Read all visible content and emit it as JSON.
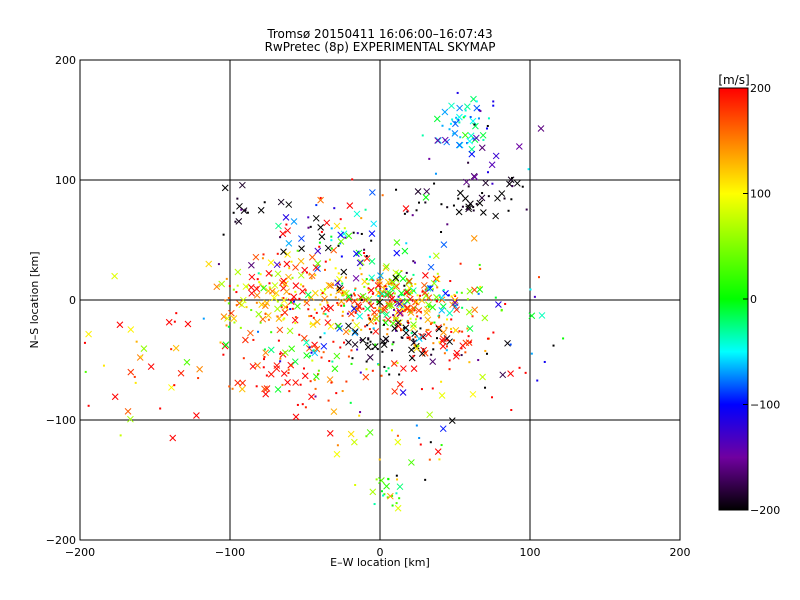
{
  "chart_data": {
    "type": "scatter",
    "title": "Tromsø 20150411 16:06:00–16:07:43",
    "subtitle": "RwPretec (8p) EXPERIMENTAL SKYMAP",
    "xlabel": "E–W location [km]",
    "ylabel": "N–S location [km]",
    "xlim": [
      -200,
      200
    ],
    "ylim": [
      -200,
      200
    ],
    "x_ticks": [
      -200,
      -100,
      0,
      100,
      200
    ],
    "y_ticks": [
      -200,
      -100,
      0,
      100,
      200
    ],
    "x_tick_labels": [
      "−200",
      "−100",
      "0",
      "100",
      "200"
    ],
    "y_tick_labels": [
      "−200",
      "−100",
      "0",
      "100",
      "200"
    ],
    "gridlines": [
      -100,
      0,
      100
    ],
    "grid": true,
    "colorbar": {
      "unit_label": "[m/s]",
      "range": [
        -200,
        200
      ],
      "ticks": [
        200,
        100,
        0,
        -100,
        -200
      ],
      "tick_labels": [
        "200",
        "100",
        "0",
        "−100",
        "−200"
      ],
      "colormap": [
        {
          "v": -200,
          "color": "#000000"
        },
        {
          "v": -150,
          "color": "#7000a0"
        },
        {
          "v": -100,
          "color": "#0000ff"
        },
        {
          "v": -50,
          "color": "#00ffff"
        },
        {
          "v": 0,
          "color": "#00ff00"
        },
        {
          "v": 100,
          "color": "#ffff00"
        },
        {
          "v": 150,
          "color": "#ff8000"
        },
        {
          "v": 200,
          "color": "#ff0000"
        }
      ]
    },
    "marker_types": [
      "cross",
      "dot"
    ],
    "clusters": [
      {
        "x": -15,
        "y": -5,
        "sx": 35,
        "sy": 12,
        "n": 170,
        "v": 170,
        "sv": 50
      },
      {
        "x": 15,
        "y": 0,
        "sx": 22,
        "sy": 12,
        "n": 150,
        "v": 30,
        "sv": 110
      },
      {
        "x": 10,
        "y": -35,
        "sx": 18,
        "sy": 8,
        "n": 55,
        "v": -200,
        "sv": 10
      },
      {
        "x": 40,
        "y": -30,
        "sx": 18,
        "sy": 12,
        "n": 45,
        "v": 175,
        "sv": 30
      },
      {
        "x": -60,
        "y": 15,
        "sx": 18,
        "sy": 12,
        "n": 55,
        "v": 150,
        "sv": 60
      },
      {
        "x": -85,
        "y": -5,
        "sx": 15,
        "sy": 18,
        "n": 45,
        "v": 110,
        "sv": 70
      },
      {
        "x": -50,
        "y": -60,
        "sx": 35,
        "sy": 15,
        "n": 70,
        "v": 185,
        "sv": 25
      },
      {
        "x": 58,
        "y": 150,
        "sx": 10,
        "sy": 12,
        "n": 45,
        "v": -60,
        "sv": 30
      },
      {
        "x": 65,
        "y": 120,
        "sx": 20,
        "sy": 18,
        "n": 25,
        "v": -140,
        "sv": 50
      },
      {
        "x": 60,
        "y": 85,
        "sx": 22,
        "sy": 10,
        "n": 45,
        "v": -200,
        "sv": 15
      },
      {
        "x": -90,
        "y": 75,
        "sx": 10,
        "sy": 10,
        "n": 15,
        "v": -200,
        "sv": 15
      },
      {
        "x": -35,
        "y": 50,
        "sx": 25,
        "sy": 20,
        "n": 70,
        "v": -80,
        "sv": 150
      },
      {
        "x": 5,
        "y": -165,
        "sx": 6,
        "sy": 10,
        "n": 20,
        "v": 20,
        "sv": 40
      },
      {
        "x": 10,
        "y": -115,
        "sx": 25,
        "sy": 20,
        "n": 30,
        "v": 60,
        "sv": 150
      },
      {
        "x": 70,
        "y": -40,
        "sx": 30,
        "sy": 30,
        "n": 45,
        "v": 50,
        "sv": 160
      },
      {
        "x": -155,
        "y": -50,
        "sx": 22,
        "sy": 40,
        "n": 35,
        "v": 160,
        "sv": 80
      },
      {
        "x": -30,
        "y": -40,
        "sx": 30,
        "sy": 20,
        "n": 60,
        "v": 0,
        "sv": 140
      },
      {
        "x": 0,
        "y": 30,
        "sx": 40,
        "sy": 25,
        "n": 60,
        "v": 30,
        "sv": 140
      }
    ]
  }
}
